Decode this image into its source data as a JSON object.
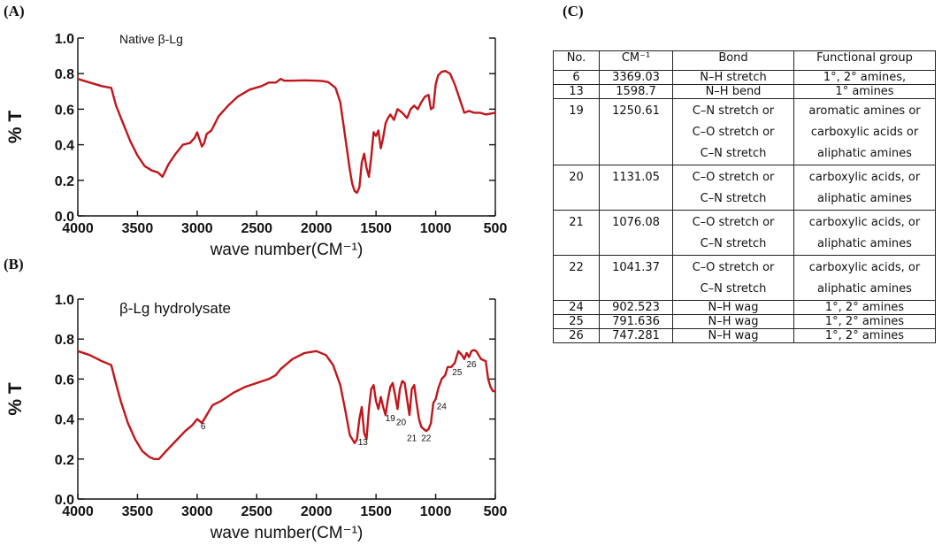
{
  "panels": {
    "a": "(A)",
    "b": "(B)",
    "c": "(C)"
  },
  "colors": {
    "spectrum": "#c0161b",
    "axis": "#111111"
  },
  "chart_data": [
    {
      "type": "line",
      "title": "Native β-Lg",
      "xlabel": "wave number(CM⁻¹)",
      "ylabel": "% T",
      "xlim": [
        4000,
        500
      ],
      "ylim": [
        0.0,
        1.0
      ],
      "xticks": [
        "4000",
        "3500",
        "3000",
        "2500",
        "2000",
        "1500",
        "1000",
        "500"
      ],
      "yticks": [
        "0.0",
        "0.2",
        "0.4",
        "0.6",
        "0.8",
        "1.0"
      ],
      "series": [
        {
          "points": [
            [
              4000,
              0.77
            ],
            [
              3900,
              0.75
            ],
            [
              3800,
              0.73
            ],
            [
              3720,
              0.72
            ],
            [
              3680,
              0.62
            ],
            [
              3620,
              0.52
            ],
            [
              3560,
              0.42
            ],
            [
              3500,
              0.34
            ],
            [
              3440,
              0.28
            ],
            [
              3380,
              0.255
            ],
            [
              3330,
              0.245
            ],
            [
              3290,
              0.22
            ],
            [
              3240,
              0.29
            ],
            [
              3180,
              0.35
            ],
            [
              3120,
              0.4
            ],
            [
              3060,
              0.41
            ],
            [
              3020,
              0.44
            ],
            [
              3000,
              0.47
            ],
            [
              2980,
              0.43
            ],
            [
              2960,
              0.39
            ],
            [
              2940,
              0.41
            ],
            [
              2920,
              0.46
            ],
            [
              2880,
              0.48
            ],
            [
              2820,
              0.56
            ],
            [
              2740,
              0.62
            ],
            [
              2660,
              0.67
            ],
            [
              2560,
              0.71
            ],
            [
              2460,
              0.73
            ],
            [
              2400,
              0.75
            ],
            [
              2340,
              0.75
            ],
            [
              2300,
              0.77
            ],
            [
              2270,
              0.76
            ],
            [
              2200,
              0.76
            ],
            [
              2100,
              0.762
            ],
            [
              2000,
              0.76
            ],
            [
              1950,
              0.758
            ],
            [
              1900,
              0.752
            ],
            [
              1840,
              0.72
            ],
            [
              1800,
              0.64
            ],
            [
              1760,
              0.45
            ],
            [
              1720,
              0.26
            ],
            [
              1700,
              0.18
            ],
            [
              1680,
              0.14
            ],
            [
              1660,
              0.13
            ],
            [
              1640,
              0.16
            ],
            [
              1620,
              0.3
            ],
            [
              1600,
              0.35
            ],
            [
              1580,
              0.27
            ],
            [
              1560,
              0.22
            ],
            [
              1540,
              0.33
            ],
            [
              1520,
              0.47
            ],
            [
              1500,
              0.45
            ],
            [
              1480,
              0.48
            ],
            [
              1460,
              0.38
            ],
            [
              1440,
              0.44
            ],
            [
              1420,
              0.52
            ],
            [
              1400,
              0.55
            ],
            [
              1380,
              0.57
            ],
            [
              1350,
              0.54
            ],
            [
              1320,
              0.6
            ],
            [
              1280,
              0.58
            ],
            [
              1240,
              0.55
            ],
            [
              1210,
              0.6
            ],
            [
              1180,
              0.62
            ],
            [
              1150,
              0.6
            ],
            [
              1120,
              0.64
            ],
            [
              1090,
              0.67
            ],
            [
              1060,
              0.68
            ],
            [
              1040,
              0.6
            ],
            [
              1020,
              0.61
            ],
            [
              1000,
              0.74
            ],
            [
              980,
              0.79
            ],
            [
              950,
              0.81
            ],
            [
              920,
              0.815
            ],
            [
              880,
              0.8
            ],
            [
              840,
              0.74
            ],
            [
              800,
              0.66
            ],
            [
              760,
              0.58
            ],
            [
              720,
              0.59
            ],
            [
              680,
              0.58
            ],
            [
              630,
              0.58
            ],
            [
              580,
              0.57
            ],
            [
              500,
              0.58
            ]
          ]
        }
      ]
    },
    {
      "type": "line",
      "title": "β-Lg hydrolysate",
      "xlabel": "wave number(CM⁻¹)",
      "ylabel": "% T",
      "xlim": [
        4000,
        500
      ],
      "ylim": [
        0.0,
        1.0
      ],
      "xticks": [
        "4000",
        "3500",
        "3000",
        "2500",
        "2000",
        "1500",
        "1000",
        "500"
      ],
      "yticks": [
        "0.0",
        "0.2",
        "0.4",
        "0.6",
        "0.8",
        "1.0"
      ],
      "series": [
        {
          "points": [
            [
              4000,
              0.74
            ],
            [
              3900,
              0.72
            ],
            [
              3800,
              0.69
            ],
            [
              3760,
              0.68
            ],
            [
              3720,
              0.67
            ],
            [
              3690,
              0.6
            ],
            [
              3640,
              0.49
            ],
            [
              3580,
              0.38
            ],
            [
              3520,
              0.3
            ],
            [
              3460,
              0.24
            ],
            [
              3400,
              0.21
            ],
            [
              3360,
              0.2
            ],
            [
              3320,
              0.2
            ],
            [
              3260,
              0.24
            ],
            [
              3180,
              0.29
            ],
            [
              3100,
              0.34
            ],
            [
              3040,
              0.37
            ],
            [
              3000,
              0.4
            ],
            [
              2960,
              0.38
            ],
            [
              2920,
              0.42
            ],
            [
              2870,
              0.47
            ],
            [
              2800,
              0.49
            ],
            [
              2700,
              0.53
            ],
            [
              2600,
              0.56
            ],
            [
              2500,
              0.58
            ],
            [
              2400,
              0.6
            ],
            [
              2340,
              0.62
            ],
            [
              2300,
              0.65
            ],
            [
              2200,
              0.7
            ],
            [
              2100,
              0.73
            ],
            [
              2000,
              0.74
            ],
            [
              1920,
              0.72
            ],
            [
              1860,
              0.67
            ],
            [
              1800,
              0.57
            ],
            [
              1760,
              0.45
            ],
            [
              1720,
              0.32
            ],
            [
              1680,
              0.28
            ],
            [
              1660,
              0.3
            ],
            [
              1640,
              0.4
            ],
            [
              1620,
              0.46
            ],
            [
              1600,
              0.33
            ],
            [
              1580,
              0.3
            ],
            [
              1560,
              0.45
            ],
            [
              1540,
              0.55
            ],
            [
              1520,
              0.57
            ],
            [
              1500,
              0.49
            ],
            [
              1480,
              0.45
            ],
            [
              1460,
              0.51
            ],
            [
              1440,
              0.46
            ],
            [
              1420,
              0.42
            ],
            [
              1400,
              0.5
            ],
            [
              1380,
              0.56
            ],
            [
              1360,
              0.58
            ],
            [
              1340,
              0.52
            ],
            [
              1320,
              0.45
            ],
            [
              1300,
              0.55
            ],
            [
              1280,
              0.59
            ],
            [
              1260,
              0.58
            ],
            [
              1240,
              0.5
            ],
            [
              1220,
              0.42
            ],
            [
              1200,
              0.55
            ],
            [
              1180,
              0.57
            ],
            [
              1160,
              0.48
            ],
            [
              1140,
              0.4
            ],
            [
              1120,
              0.36
            ],
            [
              1100,
              0.35
            ],
            [
              1080,
              0.34
            ],
            [
              1060,
              0.35
            ],
            [
              1040,
              0.38
            ],
            [
              1020,
              0.48
            ],
            [
              1000,
              0.5
            ],
            [
              980,
              0.55
            ],
            [
              950,
              0.6
            ],
            [
              920,
              0.62
            ],
            [
              900,
              0.66
            ],
            [
              870,
              0.66
            ],
            [
              840,
              0.68
            ],
            [
              810,
              0.74
            ],
            [
              780,
              0.72
            ],
            [
              760,
              0.7
            ],
            [
              740,
              0.73
            ],
            [
              720,
              0.71
            ],
            [
              700,
              0.74
            ],
            [
              680,
              0.745
            ],
            [
              660,
              0.74
            ],
            [
              640,
              0.72
            ],
            [
              620,
              0.7
            ],
            [
              580,
              0.69
            ],
            [
              560,
              0.6
            ],
            [
              540,
              0.56
            ],
            [
              520,
              0.54
            ],
            [
              500,
              0.54
            ]
          ]
        }
      ],
      "annotations": [
        {
          "text": "6",
          "x": 2950,
          "y": 0.35
        },
        {
          "text": "13",
          "x": 1610,
          "y": 0.27
        },
        {
          "text": "19",
          "x": 1380,
          "y": 0.39
        },
        {
          "text": "20",
          "x": 1290,
          "y": 0.37
        },
        {
          "text": "21",
          "x": 1200,
          "y": 0.29
        },
        {
          "text": "22",
          "x": 1080,
          "y": 0.29
        },
        {
          "text": "24",
          "x": 950,
          "y": 0.45
        },
        {
          "text": "25",
          "x": 820,
          "y": 0.62
        },
        {
          "text": "26",
          "x": 700,
          "y": 0.66
        }
      ]
    },
    {
      "type": "table",
      "columns": [
        "No.",
        "CM⁻¹",
        "Bond",
        "Functional group"
      ],
      "rows": [
        {
          "no": "6",
          "cm": "3369.03",
          "bond": [
            "N–H stretch"
          ],
          "group": [
            "1°, 2° amines,"
          ]
        },
        {
          "no": "13",
          "cm": "1598.7",
          "bond": [
            "N–H bend"
          ],
          "group": [
            "1° amines"
          ]
        },
        {
          "no": "19",
          "cm": "1250.61",
          "bond": [
            "C–N stretch  or",
            "C–O stretch or",
            "C–N stretch"
          ],
          "group": [
            "aromatic amines or",
            "carboxylic acids or",
            "aliphatic amines"
          ]
        },
        {
          "no": "20",
          "cm": "1131.05",
          "bond": [
            "C–O stretch   or",
            "C–N stretch"
          ],
          "group": [
            "carboxylic acids, or",
            "aliphatic amines"
          ]
        },
        {
          "no": "21",
          "cm": "1076.08",
          "bond": [
            "C–O stretch   or",
            "C–N stretch"
          ],
          "group": [
            "carboxylic acids, or",
            "aliphatic amines"
          ]
        },
        {
          "no": "22",
          "cm": "1041.37",
          "bond": [
            "C–O stretch   or",
            "C–N stretch"
          ],
          "group": [
            "carboxylic acids, or",
            "aliphatic amines"
          ]
        },
        {
          "no": "24",
          "cm": "902.523",
          "bond": [
            "N–H wag"
          ],
          "group": [
            "1°, 2° amines"
          ]
        },
        {
          "no": "25",
          "cm": "791.636",
          "bond": [
            "N–H wag"
          ],
          "group": [
            "1°, 2° amines"
          ]
        },
        {
          "no": "26",
          "cm": "747.281",
          "bond": [
            "N–H wag"
          ],
          "group": [
            "1°, 2° amines"
          ]
        }
      ]
    }
  ]
}
